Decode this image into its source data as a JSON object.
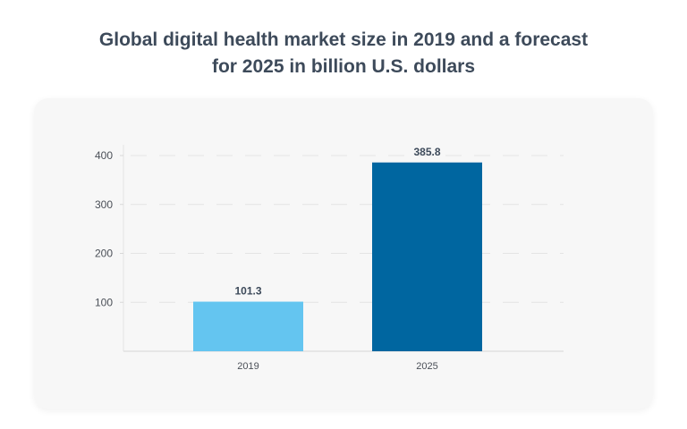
{
  "chart_data": {
    "type": "bar",
    "title": "Global digital health market size in 2019 and a forecast for 2025 in billion U.S. dollars",
    "title_lines": [
      "Global digital health market size in 2019 and a forecast",
      "for 2025 in billion U.S. dollars"
    ],
    "categories": [
      "2019",
      "2025"
    ],
    "values": [
      101.3,
      385.8
    ],
    "data_labels": [
      "101.3",
      "385.8"
    ],
    "colors": [
      "#64c5f0",
      "#0066a0"
    ],
    "xlabel": "",
    "ylabel": "",
    "ylim": [
      0,
      400
    ],
    "yticks": [
      100,
      200,
      300,
      400
    ],
    "grid": true,
    "grid_style": "dashed",
    "legend": "none"
  }
}
